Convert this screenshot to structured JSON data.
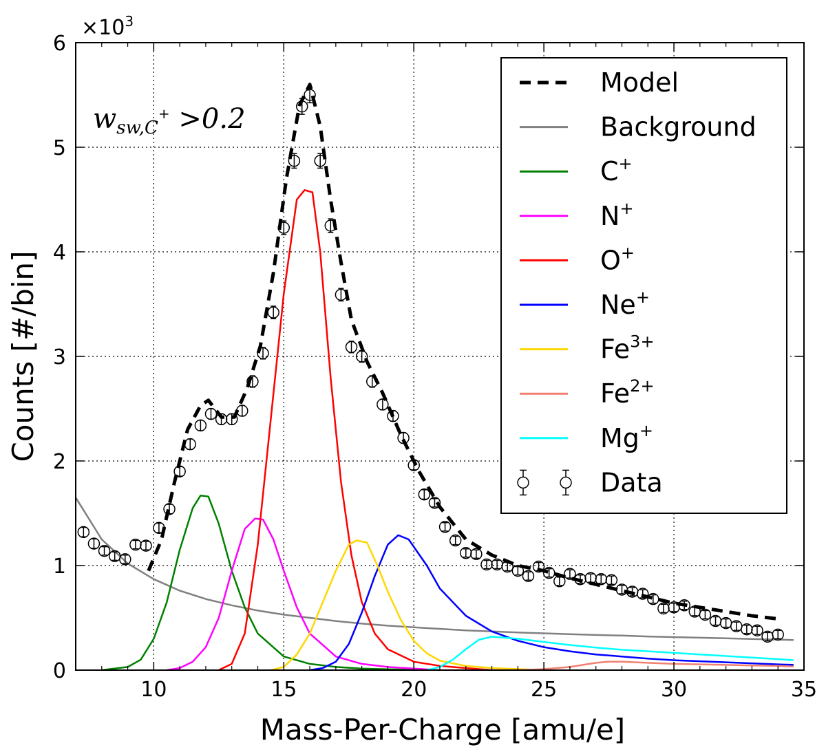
{
  "chart_data": {
    "type": "line",
    "xlabel": "Mass-Per-Charge [amu/e]",
    "ylabel": "Counts [#/bin]",
    "xlim": [
      7,
      35
    ],
    "ylim": [
      0,
      6000
    ],
    "x_ticks": [
      10,
      15,
      20,
      25,
      30,
      35
    ],
    "y_ticks": [
      0,
      1,
      2,
      3,
      4,
      5,
      6
    ],
    "y_scale_label": "×10",
    "y_scale_exponent": "3",
    "grid": true,
    "legend_position": "top-right",
    "annotation": {
      "main": "w",
      "sub": "sw,C",
      "sup": "+",
      "rest": " >0.2"
    },
    "series": [
      {
        "name": "Model",
        "color": "#000000",
        "style": "dashed",
        "x": [
          9.8,
          10.3,
          10.8,
          11.3,
          11.8,
          12.1,
          12.6,
          13.1,
          13.6,
          14.1,
          14.6,
          15.1,
          15.6,
          16.0,
          16.4,
          16.8,
          17.2,
          17.6,
          18.2,
          18.8,
          19.5,
          20.2,
          21.0,
          22.0,
          23.0,
          24.0,
          25.0,
          26.0,
          27.0,
          28.0,
          29.0,
          30.0,
          31.0,
          32.0,
          33.0,
          34.0
        ],
        "y": [
          950,
          1250,
          1800,
          2300,
          2530,
          2580,
          2420,
          2420,
          2700,
          3100,
          3800,
          4700,
          5400,
          5600,
          5200,
          4500,
          3900,
          3350,
          2950,
          2650,
          2250,
          1900,
          1560,
          1250,
          1100,
          1000,
          950,
          880,
          820,
          760,
          700,
          640,
          600,
          560,
          520,
          490
        ]
      },
      {
        "name": "Background",
        "color": "#808080",
        "style": "solid",
        "x": [
          7,
          8,
          9,
          10,
          11,
          12,
          13,
          14,
          15,
          16,
          17,
          18,
          19,
          20,
          21,
          22,
          23,
          24,
          25,
          26,
          27,
          28,
          29,
          30,
          31,
          32,
          33,
          34,
          34.6
        ],
        "y": [
          1650,
          1250,
          1020,
          870,
          760,
          680,
          620,
          570,
          530,
          500,
          470,
          445,
          425,
          410,
          395,
          380,
          370,
          360,
          352,
          344,
          336,
          330,
          322,
          316,
          310,
          304,
          298,
          292,
          288
        ]
      },
      {
        "name": "C",
        "sup": "+",
        "color": "#008000",
        "style": "solid",
        "x": [
          8.0,
          9.0,
          9.5,
          10.0,
          10.5,
          11.0,
          11.5,
          11.8,
          12.1,
          12.5,
          13.0,
          13.5,
          14.0,
          15.0,
          16.0,
          17.0,
          18.0,
          19.0,
          20.0,
          21.0
        ],
        "y": [
          0,
          30,
          100,
          300,
          650,
          1150,
          1550,
          1670,
          1660,
          1400,
          950,
          600,
          350,
          130,
          60,
          30,
          15,
          8,
          4,
          0
        ]
      },
      {
        "name": "N",
        "sup": "+",
        "color": "#ff00ff",
        "style": "solid",
        "x": [
          10.5,
          11.0,
          11.5,
          12.0,
          12.5,
          13.0,
          13.5,
          13.9,
          14.2,
          14.6,
          15.0,
          15.5,
          16.0,
          17.0,
          18.0,
          19.0,
          20.0,
          21.0
        ],
        "y": [
          0,
          20,
          80,
          220,
          500,
          950,
          1350,
          1450,
          1440,
          1250,
          950,
          600,
          350,
          130,
          60,
          30,
          15,
          0
        ]
      },
      {
        "name": "O",
        "sup": "+",
        "color": "#ff0000",
        "style": "solid",
        "x": [
          12.5,
          13.0,
          13.5,
          14.0,
          14.5,
          15.0,
          15.5,
          15.8,
          16.1,
          16.4,
          16.8,
          17.2,
          17.6,
          18.0,
          18.5,
          19.0,
          20.0,
          21.0,
          22.0,
          23.0
        ],
        "y": [
          0,
          60,
          350,
          1200,
          2400,
          3600,
          4500,
          4590,
          4570,
          4000,
          2800,
          1800,
          1100,
          650,
          350,
          200,
          80,
          40,
          20,
          0
        ]
      },
      {
        "name": "Ne",
        "sup": "+",
        "color": "#0000ff",
        "style": "solid",
        "x": [
          16.0,
          16.5,
          17.0,
          17.5,
          18.0,
          18.5,
          19.0,
          19.4,
          19.8,
          20.5,
          21.0,
          22.0,
          23.0,
          24.0,
          25.0,
          26.0,
          27.0,
          28.0,
          29.0,
          30.0,
          31.0,
          32.0,
          33.0,
          34.0,
          34.6
        ],
        "y": [
          0,
          20,
          80,
          250,
          550,
          900,
          1200,
          1290,
          1250,
          1000,
          780,
          520,
          370,
          280,
          220,
          180,
          150,
          130,
          110,
          95,
          85,
          75,
          65,
          55,
          50
        ]
      },
      {
        "name": "Fe",
        "sup": "3+",
        "color": "#ffd700",
        "style": "solid",
        "x": [
          14.5,
          15.0,
          15.5,
          16.0,
          16.5,
          17.0,
          17.5,
          17.8,
          18.2,
          18.6,
          19.0,
          19.5,
          20.0,
          20.5,
          21.0,
          22.0,
          23.0,
          24.0,
          25.0
        ],
        "y": [
          0,
          30,
          150,
          350,
          650,
          950,
          1200,
          1240,
          1220,
          1000,
          750,
          480,
          280,
          160,
          90,
          40,
          20,
          10,
          0
        ]
      },
      {
        "name": "Fe",
        "sup": "2+",
        "color": "#f08070",
        "style": "solid",
        "x": [
          20.0,
          22.0,
          24.0,
          25.0,
          26.0,
          26.5,
          27.0,
          27.5,
          28.0,
          29.0,
          30.0,
          31.0,
          32.0,
          33.0,
          34.0,
          34.6
        ],
        "y": [
          0,
          0,
          0,
          10,
          30,
          50,
          70,
          80,
          80,
          70,
          60,
          55,
          50,
          45,
          40,
          35
        ]
      },
      {
        "name": "Mg",
        "sup": "+",
        "color": "#00ffff",
        "style": "solid",
        "x": [
          20.5,
          21.0,
          21.5,
          22.0,
          22.5,
          23.0,
          23.5,
          24.0,
          25.0,
          26.0,
          27.0,
          28.0,
          29.0,
          30.0,
          31.0,
          32.0,
          33.0,
          34.0,
          34.6
        ],
        "y": [
          0,
          30,
          100,
          200,
          290,
          320,
          310,
          300,
          270,
          240,
          215,
          195,
          180,
          165,
          150,
          135,
          120,
          105,
          95
        ]
      },
      {
        "name": "Data",
        "color": "#000000",
        "style": "errorbar",
        "x": [
          7.3,
          7.7,
          8.1,
          8.5,
          8.9,
          9.3,
          9.7,
          10.2,
          10.6,
          11.0,
          11.4,
          11.8,
          12.2,
          12.6,
          13.0,
          13.4,
          13.8,
          14.2,
          14.6,
          15.0,
          15.4,
          15.7,
          16.0,
          16.4,
          16.8,
          17.2,
          17.6,
          18.0,
          18.4,
          18.8,
          19.2,
          19.6,
          20.0,
          20.4,
          20.8,
          21.2,
          21.6,
          22.0,
          22.4,
          22.8,
          23.2,
          23.6,
          24.0,
          24.4,
          24.8,
          25.2,
          25.6,
          26.0,
          26.4,
          26.8,
          27.2,
          27.6,
          28.0,
          28.4,
          28.8,
          29.2,
          29.6,
          30.0,
          30.4,
          30.8,
          31.2,
          31.6,
          32.0,
          32.4,
          32.8,
          33.2,
          33.6,
          34.0
        ],
        "y": [
          1320,
          1210,
          1140,
          1090,
          1060,
          1200,
          1190,
          1360,
          1540,
          1900,
          2160,
          2340,
          2450,
          2400,
          2400,
          2480,
          2760,
          3030,
          3420,
          4230,
          4870,
          5390,
          5500,
          4870,
          4250,
          3590,
          3090,
          3000,
          2760,
          2540,
          2430,
          2220,
          1960,
          1680,
          1600,
          1370,
          1240,
          1120,
          1110,
          1010,
          1010,
          990,
          950,
          900,
          990,
          930,
          850,
          920,
          870,
          880,
          870,
          860,
          770,
          750,
          730,
          680,
          590,
          600,
          620,
          560,
          530,
          470,
          450,
          420,
          390,
          380,
          320,
          340
        ],
        "err": [
          45,
          45,
          40,
          40,
          40,
          40,
          40,
          45,
          45,
          45,
          50,
          50,
          50,
          50,
          50,
          50,
          55,
          55,
          60,
          65,
          70,
          75,
          75,
          70,
          65,
          60,
          55,
          55,
          55,
          50,
          50,
          50,
          45,
          45,
          40,
          40,
          40,
          35,
          35,
          35,
          35,
          35,
          35,
          30,
          30,
          30,
          30,
          30,
          30,
          30,
          30,
          30,
          30,
          30,
          30,
          30,
          25,
          25,
          25,
          25,
          25,
          25,
          25,
          25,
          20,
          20,
          20,
          20
        ]
      }
    ]
  }
}
